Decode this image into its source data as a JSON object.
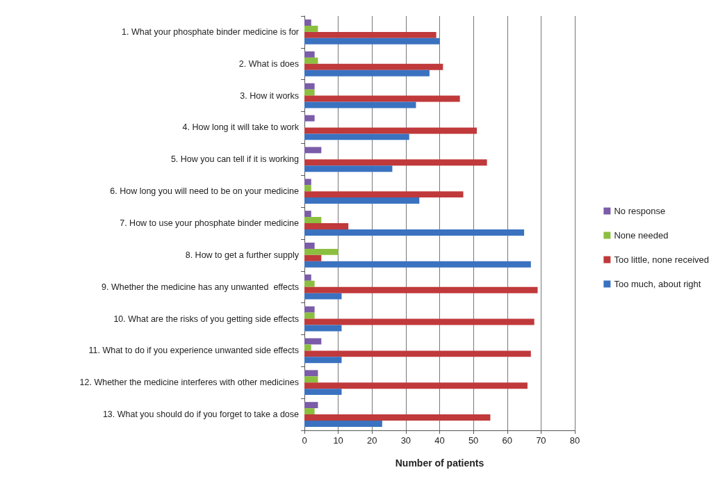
{
  "chart_data": {
    "type": "bar",
    "orientation": "horizontal",
    "xlabel": "Number of patients",
    "categories": [
      "1. What your phosphate binder medicine is for",
      "2. What is does",
      "3. How it works",
      "4. How long it will take to work",
      "5. How you can tell if it is working",
      "6. How long you will need to be on your medicine",
      "7. How to use your phosphate binder medicine",
      "8. How to get a further supply",
      "9. Whether the medicine has any unwanted  effects",
      "10. What are the risks of you getting side effects",
      "11. What to do if you experience unwanted side effects",
      "12. Whether the medicine interferes with other medicines",
      "13. What you should do if you forget to take a dose"
    ],
    "series": [
      {
        "name": "No response",
        "color": "#7a5ca8",
        "values": [
          2,
          3,
          3,
          3,
          5,
          2,
          2,
          3,
          2,
          3,
          5,
          4,
          4
        ]
      },
      {
        "name": "None needed",
        "color": "#8cbf3f",
        "values": [
          4,
          4,
          3,
          0,
          0,
          2,
          5,
          10,
          3,
          3,
          2,
          4,
          3
        ]
      },
      {
        "name": "Too little, none received",
        "color": "#c0393b",
        "values": [
          39,
          41,
          46,
          51,
          54,
          47,
          13,
          5,
          69,
          68,
          67,
          66,
          55
        ]
      },
      {
        "name": "Too much, about right",
        "color": "#3a72c0",
        "values": [
          40,
          37,
          33,
          31,
          26,
          34,
          65,
          67,
          11,
          11,
          11,
          11,
          23
        ]
      }
    ],
    "xlim": [
      0,
      80
    ],
    "xticks": [
      0,
      10,
      20,
      30,
      40,
      50,
      60,
      70,
      80
    ],
    "grid": "x",
    "legend": "right"
  }
}
